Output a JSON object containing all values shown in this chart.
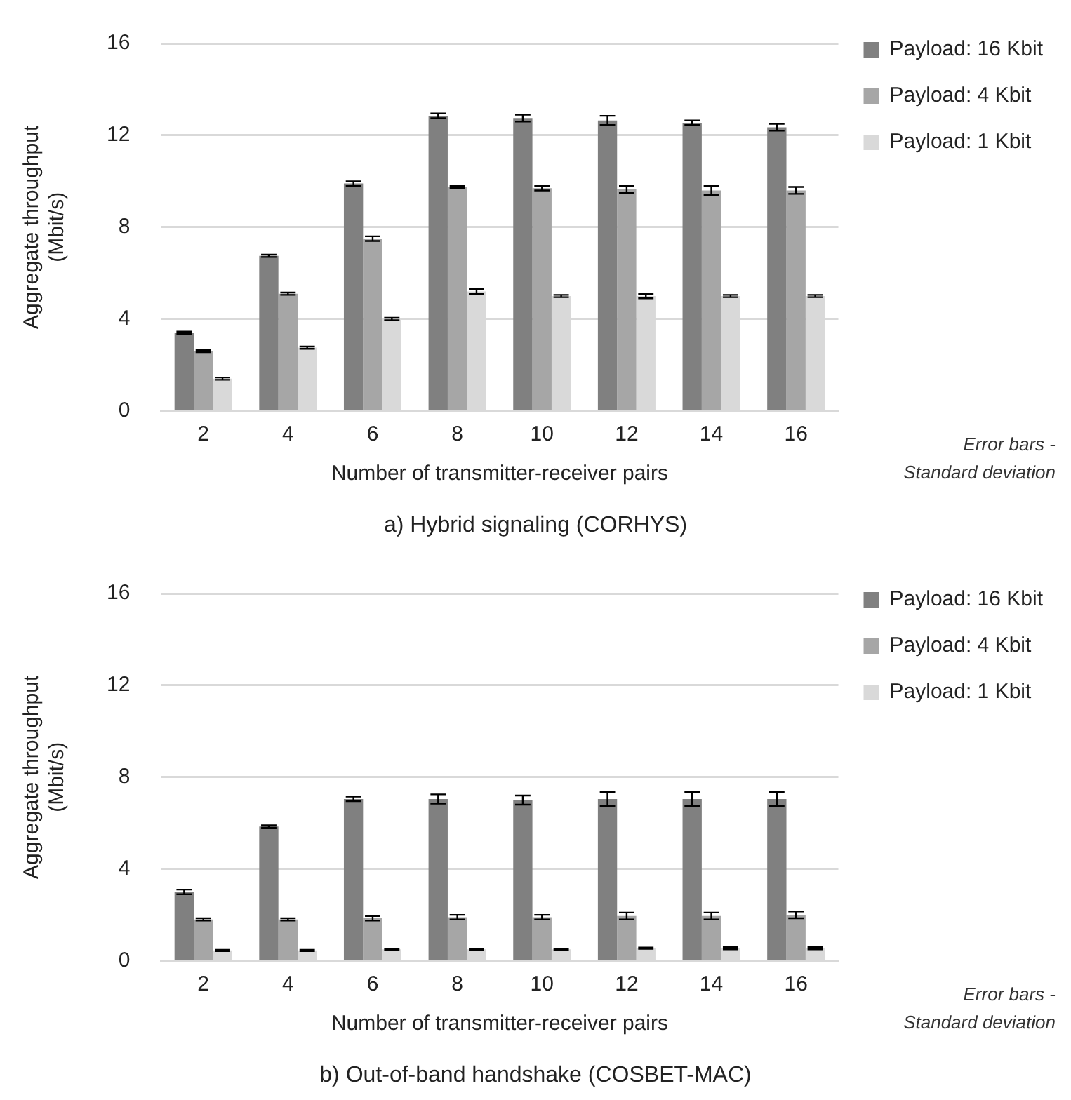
{
  "chart_data": [
    {
      "type": "bar",
      "title": "a) Hybrid signaling (CORHYS)",
      "xlabel": "Number of transmitter-receiver pairs",
      "ylabel": "Aggregate throughput (Mbit/s)",
      "categories": [
        "2",
        "4",
        "6",
        "8",
        "10",
        "12",
        "14",
        "16"
      ],
      "series": [
        {
          "name": "Payload: 16 Kbit",
          "color": "#808080",
          "values": [
            3.4,
            6.75,
            9.9,
            12.85,
            12.75,
            12.65,
            12.55,
            12.35
          ],
          "errors": [
            0.05,
            0.05,
            0.1,
            0.1,
            0.15,
            0.2,
            0.1,
            0.15
          ]
        },
        {
          "name": "Payload: 4 Kbit",
          "color": "#a6a6a6",
          "values": [
            2.6,
            5.1,
            7.5,
            9.75,
            9.7,
            9.65,
            9.6,
            9.6
          ],
          "errors": [
            0.05,
            0.05,
            0.1,
            0.05,
            0.1,
            0.15,
            0.2,
            0.15
          ]
        },
        {
          "name": "Payload: 1 Kbit",
          "color": "#d9d9d9",
          "values": [
            1.4,
            2.75,
            4.0,
            5.2,
            5.0,
            5.0,
            5.0,
            5.0
          ],
          "errors": [
            0.05,
            0.05,
            0.05,
            0.1,
            0.05,
            0.1,
            0.05,
            0.05
          ]
        }
      ],
      "ylim": [
        0,
        16
      ],
      "yticks": [
        0,
        4,
        8,
        12,
        16
      ],
      "grid": "y",
      "legend": "top right",
      "annotations": [
        "Error bars - Standard deviation"
      ]
    },
    {
      "type": "bar",
      "title": "b) Out-of-band handshake (COSBET-MAC)",
      "xlabel": "Number of transmitter-receiver pairs",
      "ylabel": "Aggregate throughput (Mbit/s)",
      "categories": [
        "2",
        "4",
        "6",
        "8",
        "10",
        "12",
        "14",
        "16"
      ],
      "series": [
        {
          "name": "Payload: 16 Kbit",
          "color": "#808080",
          "values": [
            3.0,
            5.85,
            7.05,
            7.05,
            7.0,
            7.05,
            7.05,
            7.05
          ],
          "errors": [
            0.1,
            0.05,
            0.1,
            0.2,
            0.2,
            0.3,
            0.3,
            0.3
          ]
        },
        {
          "name": "Payload: 4 Kbit",
          "color": "#a6a6a6",
          "values": [
            1.8,
            1.8,
            1.85,
            1.9,
            1.9,
            1.95,
            1.95,
            2.0
          ],
          "errors": [
            0.05,
            0.05,
            0.1,
            0.1,
            0.1,
            0.15,
            0.15,
            0.15
          ]
        },
        {
          "name": "Payload: 1 Kbit",
          "color": "#d9d9d9",
          "values": [
            0.45,
            0.45,
            0.5,
            0.5,
            0.5,
            0.55,
            0.55,
            0.55
          ],
          "errors": [
            0.03,
            0.03,
            0.03,
            0.03,
            0.03,
            0.03,
            0.05,
            0.05
          ]
        }
      ],
      "ylim": [
        0,
        16
      ],
      "yticks": [
        0,
        4,
        8,
        12,
        16
      ],
      "grid": "y",
      "legend": "top right",
      "annotations": [
        "Error bars - Standard deviation"
      ]
    }
  ]
}
